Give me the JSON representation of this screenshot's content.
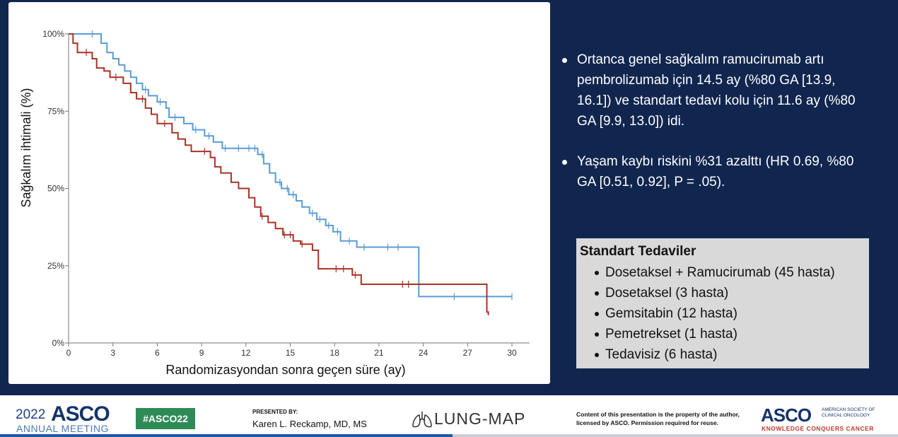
{
  "chart_data": {
    "type": "line",
    "title": "",
    "xlabel": "Randomizasyondan sonra geçen süre (ay)",
    "ylabel": "Sağkalım ihtimali (%)",
    "xlim": [
      0,
      30
    ],
    "ylim": [
      0,
      100
    ],
    "x_ticks": [
      "0",
      "3",
      "6",
      "9",
      "12",
      "15",
      "18",
      "21",
      "24",
      "27",
      "30"
    ],
    "y_ticks": [
      "0%",
      "25%",
      "50%",
      "75%",
      "100%"
    ],
    "grid": false,
    "legend": "none",
    "series": [
      {
        "color": "#5b9bd5",
        "steps": [
          [
            0,
            100
          ],
          [
            1.8,
            100
          ],
          [
            2.2,
            97
          ],
          [
            2.6,
            94
          ],
          [
            3.0,
            92
          ],
          [
            3.4,
            90
          ],
          [
            3.8,
            88
          ],
          [
            4.2,
            86
          ],
          [
            4.6,
            84
          ],
          [
            5.0,
            82
          ],
          [
            5.4,
            80
          ],
          [
            6.0,
            78
          ],
          [
            6.6,
            76
          ],
          [
            6.8,
            73
          ],
          [
            7.8,
            71
          ],
          [
            8.4,
            69
          ],
          [
            9.2,
            67
          ],
          [
            9.8,
            65
          ],
          [
            10.4,
            63
          ],
          [
            12.8,
            61
          ],
          [
            13.2,
            58
          ],
          [
            13.6,
            55
          ],
          [
            14.0,
            52
          ],
          [
            14.4,
            50
          ],
          [
            14.9,
            48
          ],
          [
            15.4,
            46
          ],
          [
            15.8,
            44
          ],
          [
            16.3,
            42
          ],
          [
            16.8,
            40
          ],
          [
            17.4,
            38
          ],
          [
            17.9,
            36
          ],
          [
            18.4,
            33
          ],
          [
            19.5,
            31
          ],
          [
            23.5,
            31
          ],
          [
            23.7,
            15
          ],
          [
            30,
            15
          ]
        ],
        "censors": [
          1.6,
          5.2,
          6.2,
          7.2,
          8.6,
          9.5,
          10.6,
          11.5,
          12.2,
          12.6,
          13.1,
          14.3,
          14.8,
          15.2,
          16.5,
          17.0,
          17.6,
          18.2,
          19.0,
          20.0,
          21.6,
          22.3,
          26.1,
          30.0
        ]
      },
      {
        "color": "#a93226",
        "steps": [
          [
            0,
            100
          ],
          [
            0.3,
            97
          ],
          [
            0.6,
            94
          ],
          [
            1.6,
            92
          ],
          [
            1.9,
            89
          ],
          [
            2.4,
            88
          ],
          [
            2.8,
            86
          ],
          [
            3.7,
            84
          ],
          [
            4.2,
            81
          ],
          [
            4.6,
            79
          ],
          [
            5.2,
            76
          ],
          [
            5.6,
            74
          ],
          [
            6.0,
            71
          ],
          [
            7.0,
            68
          ],
          [
            7.4,
            66
          ],
          [
            7.9,
            64
          ],
          [
            8.3,
            62
          ],
          [
            9.6,
            60
          ],
          [
            9.9,
            57
          ],
          [
            10.3,
            55
          ],
          [
            11.0,
            52
          ],
          [
            11.5,
            50
          ],
          [
            12.2,
            47
          ],
          [
            12.6,
            44
          ],
          [
            13.0,
            41
          ],
          [
            13.5,
            39
          ],
          [
            14.0,
            37
          ],
          [
            14.5,
            35
          ],
          [
            15.2,
            33
          ],
          [
            15.7,
            32
          ],
          [
            16.5,
            30
          ],
          [
            16.9,
            24
          ],
          [
            19.2,
            22
          ],
          [
            19.8,
            19
          ],
          [
            28.2,
            19
          ],
          [
            28.3,
            10
          ],
          [
            28.4,
            9
          ]
        ],
        "censors": [
          1.2,
          3.2,
          5.0,
          6.5,
          9.2,
          13.1,
          14.6,
          15.0,
          15.8,
          18.1,
          18.6,
          19.4,
          22.6,
          23.0
        ]
      }
    ]
  },
  "bullets": [
    "Ortanca genel sağkalım ramucirumab artı pembrolizumab için 14.5 ay (%80 GA [13.9, 16.1]) ve standart tedavi kolu için 11.6 ay (%80 GA [9.9, 13.0]) idi.",
    "Yaşam kaybı riskini %31 azalttı (HR 0.69, %80 GA [0.51, 0.92], P = .05)."
  ],
  "treatments": {
    "title": "Standart Tedaviler",
    "items": [
      "Dosetaksel + Ramucirumab (45 hasta)",
      "Dosetaksel (3 hasta)",
      "Gemsitabin (12 hasta)",
      "Pemetrekset (1 hasta)",
      "Tedavisiz (6 hasta)"
    ]
  },
  "footer": {
    "meeting_year": "2022",
    "meeting_brand": "ASCO",
    "meeting_sub": "ANNUAL MEETING",
    "hashtag": "#ASCO22",
    "presented_label": "PRESENTED BY:",
    "presenter": "Karen L. Reckamp, MD, MS",
    "lungmap": "LUNG-MAP",
    "copyright": "Content of this presentation is the property of the author, licensed by ASCO. Permission required for reuse.",
    "asco_logo": "ASCO",
    "asco_society": "AMERICAN SOCIETY OF CLINICAL ONCOLOGY",
    "asco_tagline": "KNOWLEDGE CONQUERS CANCER"
  }
}
